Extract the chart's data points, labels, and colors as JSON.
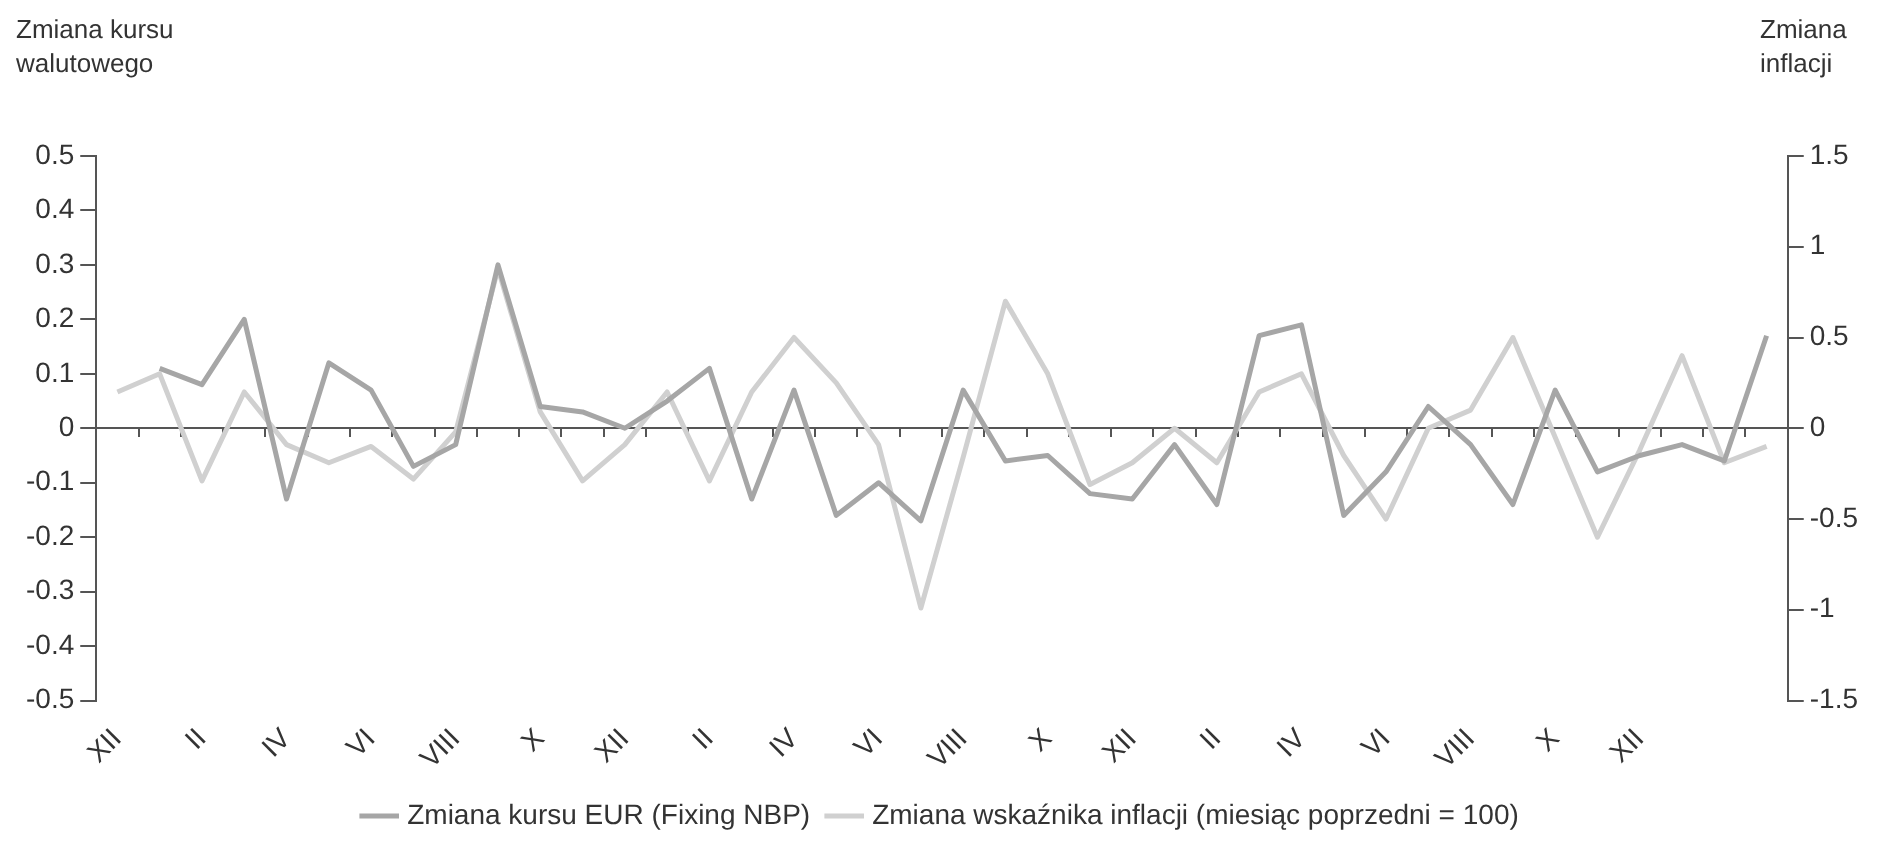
{
  "chart_data": {
    "type": "line",
    "ylabel": "Zmiana kursu walutowego",
    "y2label": "Zmiana inflacji",
    "categories": [
      "XII",
      null,
      "II",
      null,
      "IV",
      null,
      "VI",
      null,
      "VIII",
      null,
      "X",
      null,
      "XII",
      null,
      "II",
      null,
      "IV",
      null,
      "VI",
      null,
      "VIII",
      null,
      "X",
      null,
      "XII",
      null,
      "II",
      null,
      "IV",
      null,
      "VI",
      null,
      "VIII",
      null,
      "X",
      null,
      "XII",
      null,
      null,
      null
    ],
    "series": [
      {
        "name": "Zmiana kursu EUR (Fixing NBP)",
        "color": "#a6a6a6",
        "values": [
          null,
          0.11,
          0.08,
          0.2,
          -0.13,
          0.12,
          0.07,
          -0.07,
          -0.03,
          0.3,
          0.04,
          0.03,
          0,
          0.05,
          0.11,
          -0.13,
          0.07,
          -0.16,
          -0.1,
          -0.17,
          0.07,
          -0.06,
          -0.05,
          -0.12,
          -0.13,
          -0.03,
          -0.14,
          0.17,
          0.19,
          -0.16,
          -0.08,
          0.04,
          -0.03,
          -0.14,
          0.07,
          -0.08,
          -0.05,
          -0.03,
          -0.06,
          0.17
        ]
      },
      {
        "name": "Zmiana wskaźnika inflacji (miesiąc poprzedni = 100)",
        "color": "#d0d0d0",
        "axis": "y2",
        "values": [
          0.2,
          0.3,
          -0.29,
          0.2,
          -0.09,
          -0.19,
          -0.1,
          -0.28,
          -0.02,
          0.88,
          0.09,
          -0.29,
          -0.09,
          0.2,
          -0.29,
          0.2,
          0.5,
          0.25,
          -0.09,
          -0.99,
          -0.16,
          0.7,
          0.3,
          -0.31,
          -0.19,
          0,
          -0.19,
          0.2,
          0.3,
          -0.15,
          -0.5,
          0,
          0.1,
          0.5,
          -0.05,
          -0.6,
          -0.12,
          0.4,
          -0.19,
          -0.1
        ]
      }
    ],
    "ylim": [
      -0.5,
      0.5
    ],
    "yticks": [
      -0.5,
      -0.4,
      -0.3,
      -0.2,
      -0.1,
      0,
      0.1,
      0.2,
      0.3,
      0.4,
      0.5
    ],
    "y2lim": [
      -1.5,
      1.5
    ],
    "y2ticks": [
      -1.5,
      -1,
      -0.5,
      0,
      0.5,
      1,
      1.5
    ],
    "ref_lines": [
      {
        "axis": "y",
        "value": 0,
        "color": "#555555"
      }
    ],
    "grid": false,
    "legend": "bottom",
    "marker": "none",
    "line_style": "solid"
  }
}
